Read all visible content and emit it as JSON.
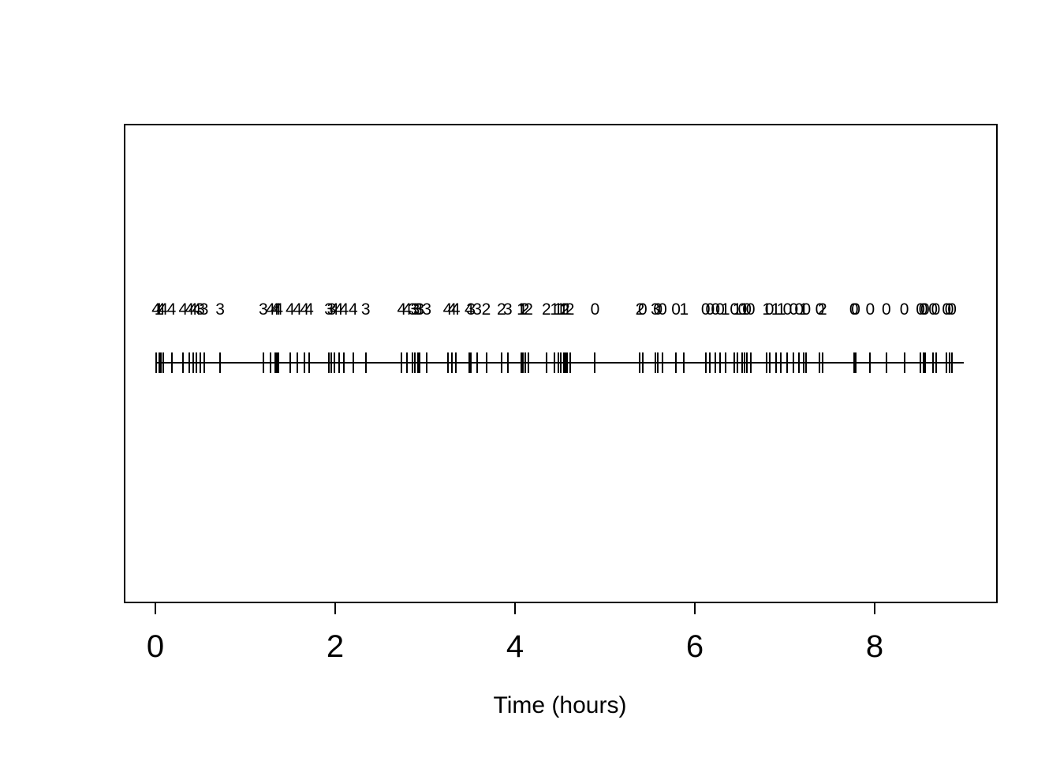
{
  "figure": {
    "background": "#ffffff",
    "foreground": "#000000"
  },
  "chart_data": {
    "type": "rug",
    "title": "",
    "xlabel": "Time (hours)",
    "ylabel": "",
    "xlim": [
      0,
      9
    ],
    "xticks": [
      "0",
      "2",
      "4",
      "6",
      "8"
    ],
    "grid": false,
    "legend": "none",
    "description_of_marks": "each event time is drawn as a vertical tick on a horizontal line with its numeric mark printed above",
    "events": [
      {
        "t": 0.01,
        "label": "4"
      },
      {
        "t": 0.04,
        "label": "1"
      },
      {
        "t": 0.06,
        "label": "4"
      },
      {
        "t": 0.09,
        "label": "4"
      },
      {
        "t": 0.18,
        "label": "4"
      },
      {
        "t": 0.31,
        "label": "4"
      },
      {
        "t": 0.38,
        "label": "4"
      },
      {
        "t": 0.42,
        "label": "4"
      },
      {
        "t": 0.46,
        "label": "4"
      },
      {
        "t": 0.5,
        "label": "3"
      },
      {
        "t": 0.54,
        "label": "3"
      },
      {
        "t": 0.72,
        "label": "3"
      },
      {
        "t": 1.2,
        "label": "3"
      },
      {
        "t": 1.28,
        "label": "4"
      },
      {
        "t": 1.33,
        "label": "4"
      },
      {
        "t": 1.35,
        "label": "4"
      },
      {
        "t": 1.37,
        "label": "4"
      },
      {
        "t": 1.5,
        "label": "4"
      },
      {
        "t": 1.58,
        "label": "4"
      },
      {
        "t": 1.66,
        "label": "4"
      },
      {
        "t": 1.71,
        "label": "4"
      },
      {
        "t": 1.93,
        "label": "3"
      },
      {
        "t": 1.96,
        "label": "3"
      },
      {
        "t": 1.99,
        "label": "4"
      },
      {
        "t": 2.04,
        "label": "4"
      },
      {
        "t": 2.1,
        "label": "4"
      },
      {
        "t": 2.2,
        "label": "4"
      },
      {
        "t": 2.34,
        "label": "3"
      },
      {
        "t": 2.74,
        "label": "4"
      },
      {
        "t": 2.8,
        "label": "4"
      },
      {
        "t": 2.86,
        "label": "3"
      },
      {
        "t": 2.89,
        "label": "3"
      },
      {
        "t": 2.92,
        "label": "3"
      },
      {
        "t": 2.94,
        "label": "3"
      },
      {
        "t": 3.02,
        "label": "3"
      },
      {
        "t": 3.25,
        "label": "4"
      },
      {
        "t": 3.3,
        "label": "4"
      },
      {
        "t": 3.34,
        "label": "4"
      },
      {
        "t": 3.49,
        "label": "4"
      },
      {
        "t": 3.51,
        "label": "3"
      },
      {
        "t": 3.58,
        "label": "3"
      },
      {
        "t": 3.68,
        "label": "2"
      },
      {
        "t": 3.85,
        "label": "2"
      },
      {
        "t": 3.92,
        "label": "3"
      },
      {
        "t": 4.07,
        "label": "1"
      },
      {
        "t": 4.09,
        "label": "1"
      },
      {
        "t": 4.11,
        "label": "2"
      },
      {
        "t": 4.15,
        "label": "2"
      },
      {
        "t": 4.35,
        "label": "2"
      },
      {
        "t": 4.44,
        "label": "1"
      },
      {
        "t": 4.48,
        "label": "1"
      },
      {
        "t": 4.51,
        "label": "1"
      },
      {
        "t": 4.54,
        "label": "1"
      },
      {
        "t": 4.56,
        "label": "2"
      },
      {
        "t": 4.58,
        "label": "1"
      },
      {
        "t": 4.61,
        "label": "2"
      },
      {
        "t": 4.89,
        "label": "0"
      },
      {
        "t": 5.39,
        "label": "2"
      },
      {
        "t": 5.42,
        "label": "0"
      },
      {
        "t": 5.56,
        "label": "3"
      },
      {
        "t": 5.59,
        "label": "0"
      },
      {
        "t": 5.64,
        "label": "0"
      },
      {
        "t": 5.79,
        "label": "0"
      },
      {
        "t": 5.88,
        "label": "1"
      },
      {
        "t": 6.12,
        "label": "0"
      },
      {
        "t": 6.17,
        "label": "0"
      },
      {
        "t": 6.23,
        "label": "0"
      },
      {
        "t": 6.28,
        "label": "0"
      },
      {
        "t": 6.34,
        "label": "1"
      },
      {
        "t": 6.44,
        "label": "0"
      },
      {
        "t": 6.47,
        "label": "1"
      },
      {
        "t": 6.53,
        "label": "0"
      },
      {
        "t": 6.55,
        "label": "1"
      },
      {
        "t": 6.58,
        "label": "0"
      },
      {
        "t": 6.62,
        "label": "0"
      },
      {
        "t": 6.8,
        "label": "1"
      },
      {
        "t": 6.83,
        "label": "0"
      },
      {
        "t": 6.9,
        "label": "1"
      },
      {
        "t": 6.96,
        "label": "1"
      },
      {
        "t": 7.03,
        "label": "0"
      },
      {
        "t": 7.1,
        "label": "0"
      },
      {
        "t": 7.16,
        "label": "0"
      },
      {
        "t": 7.21,
        "label": "1"
      },
      {
        "t": 7.24,
        "label": "0"
      },
      {
        "t": 7.39,
        "label": "0"
      },
      {
        "t": 7.42,
        "label": "2"
      },
      {
        "t": 7.77,
        "label": "0"
      },
      {
        "t": 7.79,
        "label": "0"
      },
      {
        "t": 7.95,
        "label": "0"
      },
      {
        "t": 8.13,
        "label": "0"
      },
      {
        "t": 8.33,
        "label": "0"
      },
      {
        "t": 8.51,
        "label": "0"
      },
      {
        "t": 8.54,
        "label": "0"
      },
      {
        "t": 8.56,
        "label": "0"
      },
      {
        "t": 8.65,
        "label": "0"
      },
      {
        "t": 8.68,
        "label": "0"
      },
      {
        "t": 8.8,
        "label": "0"
      },
      {
        "t": 8.83,
        "label": "0"
      },
      {
        "t": 8.86,
        "label": "0"
      }
    ]
  }
}
